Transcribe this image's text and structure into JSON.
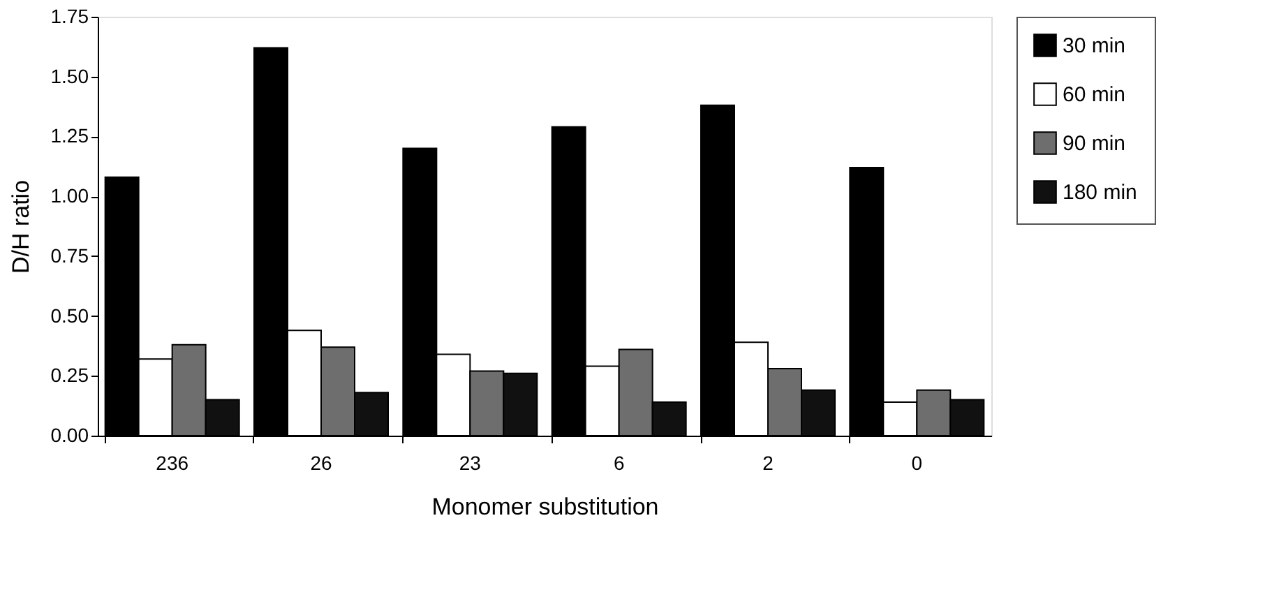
{
  "chart_data": {
    "type": "bar",
    "xlabel": "Monomer substitution",
    "ylabel": "D/H ratio",
    "categories": [
      "236",
      "26",
      "23",
      "6",
      "2",
      "0"
    ],
    "series": [
      {
        "name": "30 min",
        "color": "#000000",
        "values": [
          1.08,
          1.62,
          1.2,
          1.29,
          1.38,
          1.12
        ]
      },
      {
        "name": "60 min",
        "color": "#ffffff",
        "values": [
          0.32,
          0.44,
          0.34,
          0.29,
          0.39,
          0.14
        ]
      },
      {
        "name": "90 min",
        "color": "#6e6e6e",
        "values": [
          0.38,
          0.37,
          0.27,
          0.36,
          0.28,
          0.19
        ]
      },
      {
        "name": "180 min",
        "color": "#111111",
        "values": [
          0.15,
          0.18,
          0.26,
          0.14,
          0.19,
          0.15
        ]
      }
    ],
    "ylim": [
      0,
      1.75
    ],
    "yticks": [
      {
        "value": 0,
        "label": "0.00"
      },
      {
        "value": 0.25,
        "label": "0.25"
      },
      {
        "value": 0.5,
        "label": "0.50"
      },
      {
        "value": 0.75,
        "label": "0.75"
      },
      {
        "value": 1,
        "label": "1.00"
      },
      {
        "value": 1.25,
        "label": "1.25"
      },
      {
        "value": 1.5,
        "label": "1.50"
      },
      {
        "value": 1.75,
        "label": "1.75"
      }
    ],
    "grid": false,
    "legend": "top right"
  }
}
